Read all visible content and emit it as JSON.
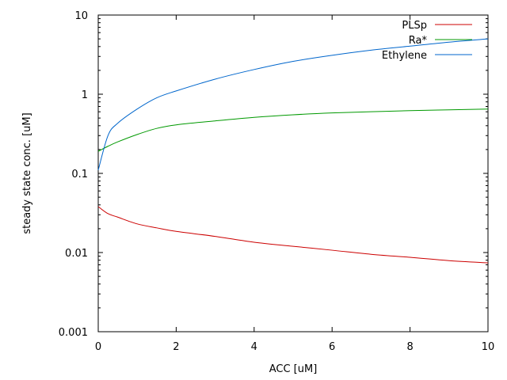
{
  "chart_data": {
    "type": "line",
    "xlabel": "ACC [uM]",
    "ylabel": "steady state conc. [uM]",
    "xlim": [
      0,
      10
    ],
    "ylim": [
      0.001,
      10
    ],
    "yscale": "log",
    "grid": false,
    "legend_position": "top-right",
    "x_ticks": [
      0,
      2,
      4,
      6,
      8,
      10
    ],
    "x_tick_labels": [
      "0",
      "2",
      "4",
      "6",
      "8",
      "10"
    ],
    "y_ticks": [
      0.001,
      0.01,
      0.1,
      1,
      10
    ],
    "y_tick_labels": [
      "0.001",
      "0.01",
      "0.1",
      "1",
      "10"
    ],
    "x": [
      0,
      0.25,
      0.5,
      1,
      1.5,
      2,
      3,
      4,
      5,
      6,
      7,
      8,
      9,
      10
    ],
    "series": [
      {
        "name": "PLSp",
        "color": "#cc0000",
        "values": [
          0.038,
          0.031,
          0.028,
          0.023,
          0.0205,
          0.0185,
          0.016,
          0.0135,
          0.012,
          0.0107,
          0.0095,
          0.0087,
          0.0079,
          0.0074
        ]
      },
      {
        "name": "Ra*",
        "color": "#009900",
        "values": [
          0.19,
          0.22,
          0.25,
          0.31,
          0.37,
          0.41,
          0.46,
          0.51,
          0.55,
          0.58,
          0.6,
          0.62,
          0.635,
          0.65
        ]
      },
      {
        "name": "Ethylene",
        "color": "#0066cc",
        "values": [
          0.11,
          0.3,
          0.43,
          0.65,
          0.9,
          1.1,
          1.55,
          2.05,
          2.6,
          3.1,
          3.6,
          4.05,
          4.55,
          5.0
        ]
      }
    ]
  }
}
